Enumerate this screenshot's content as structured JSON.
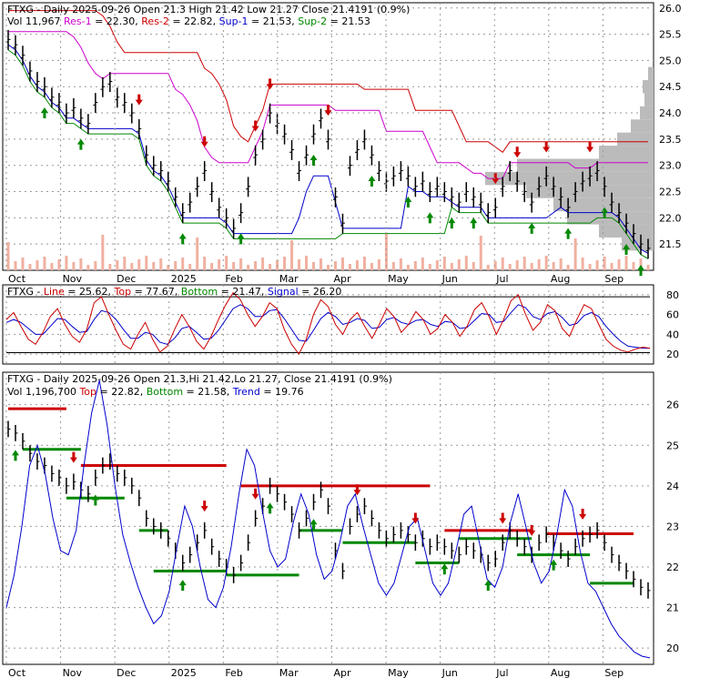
{
  "colors": {
    "res1": "#cc00cc",
    "res2": "#cc0000",
    "sup1": "#0000cc",
    "sup2": "#008800",
    "line": "#cc0000",
    "top": "#cc0000",
    "bottom": "#008800",
    "signal": "#0000cc",
    "trend": "#0000cc",
    "grid": "#999999",
    "up_arrow": "#008800",
    "down_arrow": "#cc0000",
    "volume_profile": "#bbbbbb"
  },
  "chart_data": [
    {
      "type": "line",
      "ticker": "FTXG",
      "header_line1": [
        {
          "text": "FTXG - Daily 2025-09-26 Open 21.3   High 21.42   Low 21.27   Close 21.4191 (0.9%)",
          "color": "#000000"
        }
      ],
      "header_line2": [
        {
          "text": "Vol 11,967 ",
          "color": "#000000"
        },
        {
          "text": "Res-1",
          "color": "#cc00cc"
        },
        {
          "text": " = 22.30, ",
          "color": "#000000"
        },
        {
          "text": "Res-2",
          "color": "#cc0000"
        },
        {
          "text": " = 22.82, ",
          "color": "#000000"
        },
        {
          "text": "Sup-1",
          "color": "#0000cc"
        },
        {
          "text": " = 21.53, ",
          "color": "#000000"
        },
        {
          "text": "Sup-2",
          "color": "#008800"
        },
        {
          "text": " = 21.53",
          "color": "#000000"
        }
      ],
      "y_ticks": [
        "21.5",
        "22.0",
        "22.5",
        "23.0",
        "23.5",
        "24.0",
        "24.5",
        "25.0",
        "25.5",
        "26.0"
      ],
      "ylim": [
        21.0,
        26.1
      ],
      "x_ticks": [
        "Oct",
        "Nov",
        "Dec",
        "2025",
        "Feb",
        "Mar",
        "Apr",
        "May",
        "Jun",
        "Jul",
        "Aug",
        "Sep"
      ],
      "close": [
        25.4,
        25.3,
        25.1,
        24.8,
        24.6,
        24.5,
        24.3,
        24.2,
        24.0,
        24.1,
        23.9,
        23.8,
        24.2,
        24.5,
        24.6,
        24.3,
        24.2,
        24.0,
        23.7,
        23.2,
        23.0,
        22.9,
        22.7,
        22.4,
        22.1,
        22.3,
        22.6,
        22.9,
        22.5,
        22.2,
        22.0,
        21.8,
        22.1,
        22.6,
        23.2,
        23.5,
        24.0,
        23.8,
        23.6,
        23.3,
        22.9,
        23.2,
        23.6,
        23.9,
        23.5,
        22.4,
        21.9,
        23.0,
        23.3,
        23.5,
        23.2,
        22.9,
        22.7,
        22.8,
        22.9,
        22.8,
        22.6,
        22.7,
        22.5,
        22.6,
        22.5,
        22.4,
        22.3,
        22.5,
        22.4,
        22.3,
        22.1,
        22.2,
        22.6,
        22.9,
        22.7,
        22.5,
        22.3,
        22.6,
        22.8,
        22.6,
        22.4,
        22.2,
        22.5,
        22.7,
        22.8,
        22.9,
        22.6,
        22.3,
        22.1,
        21.9,
        21.7,
        21.5,
        21.42
      ]
    },
    {
      "type": "line",
      "header": [
        {
          "text": "FTXG - ",
          "color": "#000000"
        },
        {
          "text": "Line",
          "color": "#cc0000"
        },
        {
          "text": " = 25.62, ",
          "color": "#000000"
        },
        {
          "text": "Top",
          "color": "#cc0000"
        },
        {
          "text": " = 77.67, ",
          "color": "#000000"
        },
        {
          "text": "Bottom",
          "color": "#008800"
        },
        {
          "text": " = 21.47, ",
          "color": "#000000"
        },
        {
          "text": "Signal",
          "color": "#0000cc"
        },
        {
          "text": " = 26.20",
          "color": "#000000"
        }
      ],
      "y_ticks": [
        "20",
        "40",
        "60",
        "80"
      ],
      "ylim": [
        10,
        90
      ],
      "line": [
        55,
        62,
        48,
        35,
        30,
        42,
        58,
        66,
        50,
        38,
        32,
        45,
        72,
        78,
        60,
        44,
        30,
        25,
        40,
        52,
        35,
        22,
        28,
        45,
        60,
        48,
        33,
        25,
        38,
        55,
        70,
        82,
        75,
        60,
        48,
        58,
        72,
        66,
        45,
        30,
        20,
        35,
        60,
        75,
        68,
        50,
        40,
        55,
        62,
        48,
        36,
        50,
        66,
        58,
        42,
        50,
        63,
        55,
        40,
        46,
        60,
        52,
        38,
        48,
        65,
        72,
        58,
        40,
        55,
        74,
        80,
        60,
        44,
        52,
        70,
        64,
        46,
        38,
        55,
        70,
        66,
        50,
        35,
        28,
        24,
        22,
        25,
        27,
        26
      ],
      "signal": [
        52,
        55,
        52,
        46,
        40,
        40,
        48,
        56,
        55,
        48,
        42,
        43,
        55,
        64,
        62,
        55,
        45,
        36,
        36,
        42,
        40,
        32,
        30,
        36,
        46,
        48,
        42,
        35,
        36,
        44,
        55,
        66,
        70,
        66,
        58,
        58,
        64,
        65,
        56,
        45,
        34,
        33,
        44,
        56,
        62,
        58,
        50,
        52,
        56,
        54,
        46,
        47,
        55,
        57,
        52,
        50,
        54,
        55,
        50,
        48,
        53,
        52,
        46,
        47,
        54,
        61,
        60,
        52,
        53,
        62,
        70,
        67,
        58,
        55,
        61,
        63,
        57,
        49,
        51,
        59,
        62,
        58,
        48,
        40,
        33,
        28,
        27,
        26,
        26
      ]
    },
    {
      "type": "line",
      "header_line1": [
        {
          "text": "FTXG - Daily 2025-09-26 Open 21.3,Hi 21.42,Lo 21.27, Close 21.4191 (0.9%)",
          "color": "#000000"
        }
      ],
      "header_line2": [
        {
          "text": "Vol 1,196,700 ",
          "color": "#000000"
        },
        {
          "text": "Top",
          "color": "#cc0000"
        },
        {
          "text": " = 22.82, ",
          "color": "#000000"
        },
        {
          "text": "Bottom",
          "color": "#008800"
        },
        {
          "text": " = 21.58, ",
          "color": "#000000"
        },
        {
          "text": "Trend",
          "color": "#0000cc"
        },
        {
          "text": " = 19.76",
          "color": "#000000"
        }
      ],
      "y_ticks": [
        "20",
        "21",
        "22",
        "23",
        "24",
        "25",
        "26"
      ],
      "ylim": [
        19.6,
        26.8
      ],
      "x_ticks": [
        "Oct",
        "Nov",
        "Dec",
        "2025",
        "Feb",
        "Mar",
        "Apr",
        "May",
        "Jun",
        "Jul",
        "Aug",
        "Sep"
      ],
      "trend": [
        21.0,
        21.8,
        23.0,
        24.5,
        25.0,
        24.3,
        23.2,
        22.4,
        22.3,
        22.9,
        24.5,
        25.8,
        26.6,
        25.5,
        24.0,
        22.8,
        22.1,
        21.5,
        21.0,
        20.6,
        20.8,
        21.4,
        22.5,
        23.5,
        23.0,
        22.0,
        21.2,
        21.0,
        21.5,
        22.5,
        23.8,
        24.9,
        24.5,
        23.4,
        22.4,
        22.0,
        22.2,
        23.1,
        23.8,
        23.3,
        22.3,
        21.7,
        21.9,
        22.6,
        23.5,
        23.8,
        23.0,
        22.3,
        21.6,
        21.3,
        21.6,
        22.3,
        23.0,
        23.2,
        22.4,
        21.6,
        21.3,
        21.6,
        22.4,
        23.3,
        23.5,
        22.6,
        21.7,
        21.5,
        22.0,
        23.1,
        23.8,
        23.0,
        22.1,
        21.6,
        21.9,
        22.8,
        23.9,
        23.5,
        22.4,
        21.6,
        21.4,
        21.0,
        20.6,
        20.3,
        20.1,
        19.9,
        19.8,
        19.76
      ]
    }
  ]
}
